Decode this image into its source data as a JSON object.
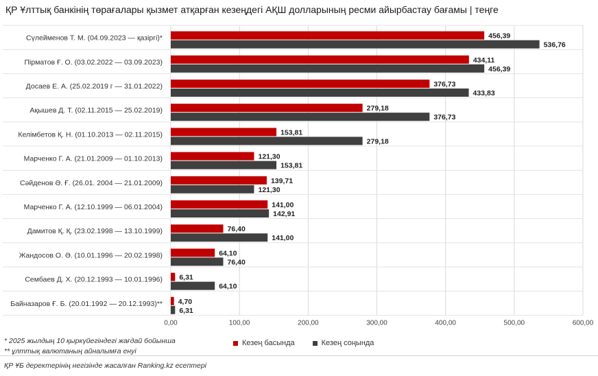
{
  "title": "ҚР Ұлттық банкінің төрағалары қызмет атқарған кезеңдегі АҚШ долларының  ресми айырбастау бағамы | теңге",
  "chart_data": {
    "type": "bar",
    "orientation": "horizontal",
    "categories": [
      "Сүлейменов Т. М. (04.09.2023 — қазіргі)*",
      "Пірматов Ғ. О. (03.02.2022 — 03.09.2023)",
      "Досаев Е. А. (25.02.2019 г — 31.01.2022)",
      "Ақышев Д. Т. (02.11.2015 — 25.02.2019)",
      "Келімбетов Қ. Н. (01.10.2013 — 02.11.2015)",
      "Марченко Г. А. (21.01.2009 — 01.10.2013)",
      "Сәйденов Ә. Ғ. (26.01. 2004 — 21.01.2009)",
      "Марченко Г. А. (12.10.1999 — 06.01.2004)",
      "Дамитов Қ. Қ. (23.02.1998 — 13.10.1999)",
      "Жандосов О. Ә. (10.01.1996 — 20.02.1998)",
      "Сембаев Д. Х. (20.12.1993 — 10.01.1996)",
      "Байназаров Ғ. Б. (20.01.1992 — 20.12.1993)**"
    ],
    "series": [
      {
        "name": "Кезең басында",
        "color": "#c00000",
        "values": [
          456.39,
          434.11,
          376.73,
          279.18,
          153.81,
          121.3,
          139.71,
          141.0,
          76.4,
          64.1,
          6.31,
          4.7
        ],
        "labels": [
          "456,39",
          "434,11",
          "376,73",
          "279,18",
          "153,81",
          "121,30",
          "139,71",
          "141,00",
          "76,40",
          "64,10",
          "6,31",
          "4,70"
        ]
      },
      {
        "name": "Кезең соңында",
        "color": "#404040",
        "values": [
          536.76,
          456.39,
          433.83,
          376.73,
          279.18,
          153.81,
          121.3,
          142.91,
          141.0,
          76.4,
          64.1,
          6.31
        ],
        "labels": [
          "536,76",
          "456,39",
          "433,83",
          "376,73",
          "279,18",
          "153,81",
          "121,30",
          "142,91",
          "141,00",
          "76,40",
          "64,10",
          "6,31"
        ]
      }
    ],
    "xlim": [
      0,
      600
    ],
    "xticks": [
      0,
      100,
      200,
      300,
      400,
      500,
      600
    ],
    "xtick_labels": [
      "0,00",
      "100,00",
      "200,00",
      "300,00",
      "400,00",
      "500,00",
      "600,00"
    ],
    "grid": true,
    "legend_position": "bottom"
  },
  "footnotes": {
    "note1": "* 2025 жылдың 10 қыркүйегіндегі жағдай бойынша",
    "note2": "** ұлттық валютаның айналымға енуі",
    "source": "ҚР ҰБ деректерінің негізінде жасалған Ranking.kz есептері"
  }
}
